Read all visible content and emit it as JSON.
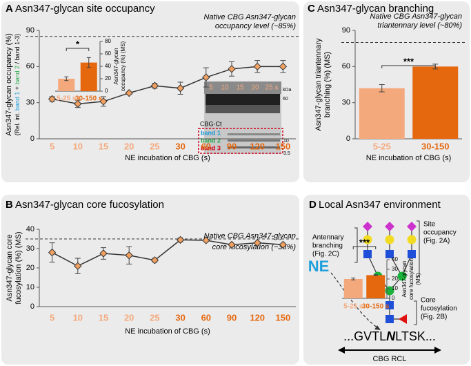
{
  "chart_data": [
    {
      "type": "line",
      "panel": "A",
      "title": "Asn347-glycan site occupancy",
      "categories": [
        "5",
        "10",
        "15",
        "20",
        "25",
        "30",
        "60",
        "90",
        "120",
        "150"
      ],
      "category_colors": [
        "#f4a97c",
        "#f4a97c",
        "#f4a97c",
        "#f4a97c",
        "#f4a97c",
        "#e5680f",
        "#e5680f",
        "#e5680f",
        "#e5680f",
        "#e5680f"
      ],
      "values": [
        33,
        29,
        31,
        38,
        44,
        42,
        51,
        58,
        60,
        60
      ],
      "errors": [
        2,
        3,
        4,
        1,
        2,
        5,
        8,
        6,
        5,
        5
      ],
      "color": "#333333",
      "marker_color": "#f0a060",
      "ylim": [
        0,
        90
      ],
      "yticks": [
        0,
        30,
        60,
        90
      ],
      "ylabel": [
        "Asn347-glycan occupancy (%)"
      ],
      "ylabel_parts": [
        {
          "text": "(Rel. int. ",
          "color": "#000000"
        },
        {
          "text": "band 1",
          "color": "#1f9bd7"
        },
        {
          "text": " + ",
          "color": "#000000"
        },
        {
          "text": "band 2",
          "color": "#2aa84a"
        },
        {
          "text": " / band 1-3)",
          "color": "#000000"
        }
      ],
      "xlabel": "NE incubation of CBG (s)",
      "reference": {
        "value": 85,
        "label": [
          "Native CBG Asn347-glycan",
          "occupancy level (~85%)"
        ]
      }
    },
    {
      "type": "bar",
      "categories": [
        "5-25 s",
        "30-150 s"
      ],
      "values": [
        20,
        46
      ],
      "errors": [
        3,
        8
      ],
      "colors": [
        "#f4a97c",
        "#e5680f"
      ],
      "ylim": [
        0,
        80
      ],
      "yticks": [
        0,
        20,
        40,
        60,
        80
      ],
      "ylabel": [
        "Asn347-glycan",
        "occupancy (%) (MS)"
      ],
      "significance": "*"
    },
    {
      "type": "line",
      "panel": "B",
      "title": "Asn347-glycan core fucosylation",
      "categories": [
        "5",
        "10",
        "15",
        "20",
        "25",
        "30",
        "60",
        "90",
        "120",
        "150"
      ],
      "category_colors": [
        "#f4a97c",
        "#f4a97c",
        "#f4a97c",
        "#f4a97c",
        "#f4a97c",
        "#e5680f",
        "#e5680f",
        "#e5680f",
        "#e5680f",
        "#e5680f"
      ],
      "values": [
        28,
        21,
        27.5,
        26.5,
        24,
        34.5,
        34.3,
        32,
        33,
        32
      ],
      "errors": [
        5,
        4,
        3,
        4.5,
        1,
        1,
        0.5,
        0.5,
        0.5,
        0.5
      ],
      "color": "#333333",
      "marker_color": "#f0a060",
      "ylim": [
        0,
        40
      ],
      "yticks": [
        0,
        10,
        20,
        30,
        40
      ],
      "ylabel": [
        "Asn347-glycan core",
        "fucosylation (%) (MS)"
      ],
      "xlabel": "NE incubation of CBG (s)",
      "reference": {
        "value": 35,
        "label": [
          "Native CBG Asn347-glycan",
          "core fucosylation (~35%)"
        ]
      }
    },
    {
      "type": "bar",
      "categories": [
        "5-25 s",
        "30-150 s"
      ],
      "values": [
        20,
        24
      ],
      "errors": [
        1,
        0.5
      ],
      "colors": [
        "#f4a97c",
        "#e5680f"
      ],
      "ylim": [
        0,
        40
      ],
      "yticks": [
        0,
        10,
        20,
        30,
        40
      ],
      "ylabel": [
        "Asn347-glycan",
        "core fucosylation",
        "(MS)"
      ],
      "significance": "***"
    },
    {
      "type": "bar",
      "panel": "C",
      "title": "Asn347-glycan branching",
      "categories": [
        "5-25",
        "30-150"
      ],
      "values": [
        42,
        60
      ],
      "errors": [
        3,
        2
      ],
      "colors": [
        "#f4a97c",
        "#e5680f"
      ],
      "ylim": [
        0,
        90
      ],
      "yticks": [
        0,
        30,
        60,
        90
      ],
      "ylabel": [
        "Asn347-glycan triantennary",
        "branching (%) (MS)"
      ],
      "xlabel": "NE incubation of CBG (s)",
      "significance": "***",
      "reference": {
        "value": 80,
        "label": [
          "Native CBG Asn347-glycan",
          "triantennary level (~80%)"
        ]
      }
    }
  ],
  "gel": {
    "lanes": [
      "5",
      "10",
      "15",
      "20",
      "25 s"
    ],
    "kda": [
      "kDa",
      "60",
      "10",
      "3.5"
    ],
    "cbg": "CBG-Ct",
    "bands": [
      "band 1",
      "band 2",
      "band 3"
    ]
  },
  "diagram": {
    "panel": "D",
    "title": "Local Asn347 environment",
    "antennary": [
      "Antennary",
      "branching",
      "(Fig. 2C)"
    ],
    "site": [
      "Site",
      "occupancy",
      "(Fig. 2A)"
    ],
    "core": [
      "Core",
      "fucosylation",
      "(Fig. 2B)"
    ],
    "enzyme": "NE",
    "sequence": [
      "...GVTL",
      "N",
      "LTSK..."
    ],
    "rcl": "CBG RCL"
  }
}
